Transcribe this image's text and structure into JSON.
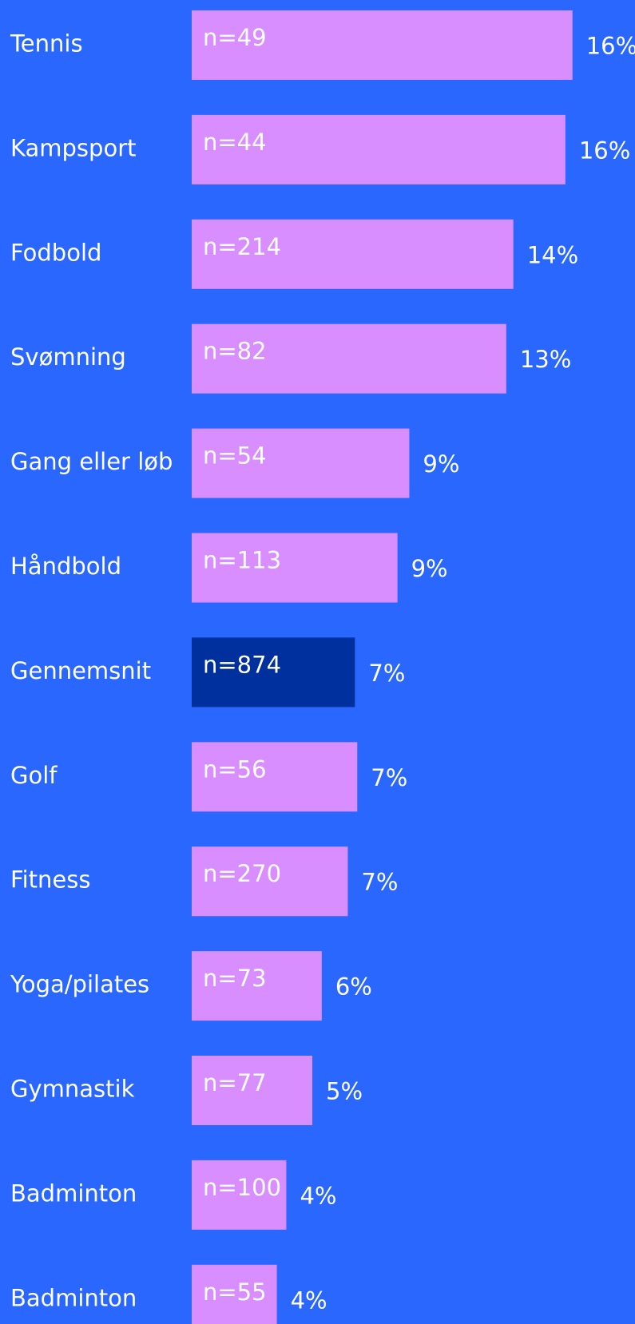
{
  "chart_data": {
    "type": "hbar",
    "categories": [
      "Tennis",
      "Kampsport",
      "Fodbold",
      "Svømning",
      "Gang eller løb",
      "Håndbold",
      "Gennemsnit",
      "Golf",
      "Fitness",
      "Yoga/pilates",
      "Gymnastik",
      "Badminton",
      "Badminton"
    ],
    "values": [
      16.1,
      15.8,
      13.6,
      13.3,
      9.2,
      8.7,
      6.9,
      7.0,
      6.6,
      5.5,
      5.1,
      4.0,
      3.6
    ],
    "value_labels": [
      "16%",
      "16%",
      "14%",
      "13%",
      "9%",
      "9%",
      "7%",
      "7%",
      "7%",
      "6%",
      "5%",
      "4%",
      "4%"
    ],
    "sample_sizes": [
      "n=49",
      "n=44",
      "n=214",
      "n=82",
      "n=54",
      "n=113",
      "n=874",
      "n=56",
      "n=270",
      "n=73",
      "n=77",
      "n=100",
      "n=55"
    ],
    "colors": [
      "#d98eff",
      "#d98eff",
      "#d98eff",
      "#d98eff",
      "#d98eff",
      "#d98eff",
      "#002f9e",
      "#d98eff",
      "#d98eff",
      "#d98eff",
      "#d98eff",
      "#d98eff",
      "#d98eff"
    ],
    "xlim": [
      0,
      18
    ]
  }
}
